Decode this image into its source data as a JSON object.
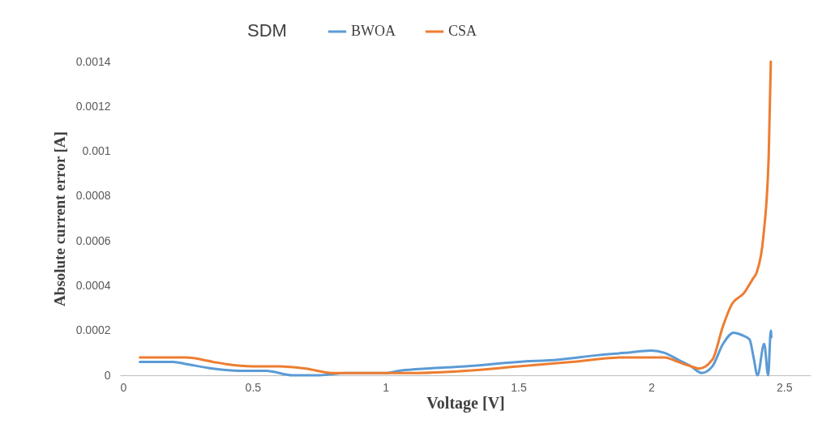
{
  "chart_data": {
    "type": "line",
    "title": "SDM",
    "xlabel": "Voltage [V]",
    "ylabel": "Absolute current error [A]",
    "xlim": [
      0,
      2.6
    ],
    "xticks": [
      0,
      0.5,
      1,
      1.5,
      2,
      2.5
    ],
    "ylim": [
      0,
      0.0014
    ],
    "yticks": [
      0,
      0.0002,
      0.0004,
      0.0006,
      0.0008,
      0.001,
      0.0012,
      0.0014
    ],
    "grid": false,
    "legend": "top",
    "marker": "none",
    "line_style": "solid",
    "series": [
      {
        "name": "BWOA",
        "color": "#5b9bd5",
        "x": [
          0.075,
          0.2,
          0.25,
          0.35,
          0.45,
          0.55,
          0.65,
          0.75,
          0.85,
          1.0,
          1.05,
          1.15,
          1.3,
          1.5,
          1.65,
          1.8,
          1.9,
          2.0,
          2.05,
          2.1,
          2.15,
          2.19,
          2.23,
          2.27,
          2.31,
          2.34,
          2.37,
          2.385,
          2.4,
          2.425,
          2.44,
          2.45,
          2.452
        ],
        "values": [
          6e-05,
          6e-05,
          5e-05,
          3e-05,
          2e-05,
          2e-05,
          0.0,
          0.0,
          1e-05,
          1e-05,
          2e-05,
          3e-05,
          4e-05,
          6e-05,
          7e-05,
          9e-05,
          0.0001,
          0.00011,
          0.0001,
          7e-05,
          4e-05,
          1e-05,
          4e-05,
          0.00014,
          0.00019,
          0.00018,
          0.00016,
          8e-05,
          0.0,
          0.00014,
          0.0,
          0.0002,
          0.00017
        ]
      },
      {
        "name": "CSA",
        "color": "#ed7d31",
        "x": [
          0.075,
          0.2,
          0.25,
          0.35,
          0.4,
          0.5,
          0.6,
          0.7,
          0.8,
          0.9,
          1.0,
          1.1,
          1.3,
          1.5,
          1.7,
          1.9,
          2.0,
          2.05,
          2.1,
          2.15,
          2.18,
          2.23,
          2.27,
          2.3,
          2.351,
          2.382,
          2.397,
          2.422,
          2.442,
          2.45
        ],
        "values": [
          8e-05,
          8e-05,
          8e-05,
          6e-05,
          5e-05,
          4e-05,
          4e-05,
          3e-05,
          1e-05,
          1e-05,
          1e-05,
          1e-05,
          2e-05,
          4e-05,
          6e-05,
          8e-05,
          8e-05,
          8e-05,
          6e-05,
          4e-05,
          3e-05,
          7e-05,
          0.00022,
          0.00031,
          0.00037,
          0.00043,
          0.00046,
          0.00062,
          0.00098,
          0.0014
        ]
      }
    ]
  }
}
